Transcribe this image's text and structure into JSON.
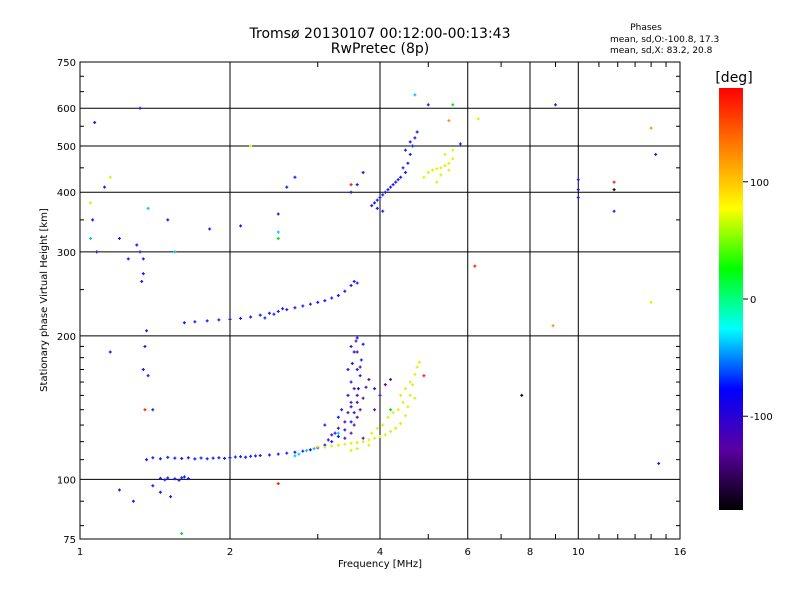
{
  "chart_data": {
    "type": "scatter",
    "title": "Tromsø 20130107 00:12:00-00:13:43",
    "subtitle": "RwPretec (8p)",
    "xlabel": "Frequency [MHz]",
    "ylabel": "Stationary phase Virtual Height [km]",
    "x_scale": "log",
    "y_scale": "log",
    "xlim": [
      1,
      16
    ],
    "ylim": [
      75,
      750
    ],
    "x_ticks": [
      1,
      2,
      4,
      6,
      8,
      10,
      16
    ],
    "y_ticks": [
      75,
      100,
      200,
      300,
      400,
      500,
      600,
      750
    ],
    "grid": true,
    "phases_box": {
      "title": "Phases",
      "line_o": "mean, sd,O:-100.8, 17.3",
      "line_x": "mean, sd,X:  83.2, 20.8"
    },
    "colorbar": {
      "label": "[deg]",
      "range": [
        -180,
        180
      ],
      "ticks": [
        100,
        0,
        -100
      ],
      "colors": [
        "#000000",
        "#5a00a0",
        "#0000ff",
        "#00ffff",
        "#00ff00",
        "#ffff00",
        "#ff8000",
        "#ff0000"
      ]
    },
    "series": [
      {
        "color": "#1a1aff",
        "points": [
          [
            1.45,
            100.5
          ],
          [
            1.5,
            100.7
          ],
          [
            1.55,
            100.3
          ],
          [
            1.6,
            100.8
          ],
          [
            1.65,
            100.4
          ],
          [
            1.48,
            99.8
          ],
          [
            1.58,
            99.6
          ],
          [
            1.62,
            101.2
          ],
          [
            1.36,
            110
          ],
          [
            1.4,
            111
          ],
          [
            1.45,
            110.5
          ],
          [
            1.5,
            111.2
          ],
          [
            1.55,
            110.8
          ],
          [
            1.6,
            110.6
          ],
          [
            1.65,
            111
          ],
          [
            1.7,
            110.4
          ],
          [
            1.75,
            110.9
          ],
          [
            1.8,
            110.5
          ],
          [
            1.85,
            110.8
          ],
          [
            1.9,
            111
          ],
          [
            1.95,
            110.7
          ],
          [
            2.0,
            111.1
          ],
          [
            2.05,
            111.4
          ],
          [
            2.1,
            111.6
          ],
          [
            2.15,
            111.3
          ],
          [
            2.2,
            111.8
          ],
          [
            2.25,
            112
          ],
          [
            2.3,
            112.2
          ],
          [
            2.4,
            112.5
          ],
          [
            2.5,
            113
          ],
          [
            2.6,
            113.5
          ],
          [
            2.7,
            114
          ],
          [
            2.8,
            114.6
          ],
          [
            2.9,
            115.4
          ],
          [
            3.0,
            116.5
          ],
          [
            3.1,
            118
          ],
          [
            3.2,
            120
          ],
          [
            3.3,
            123
          ],
          [
            3.4,
            127
          ],
          [
            3.5,
            132
          ],
          [
            3.55,
            138
          ],
          [
            3.6,
            145
          ],
          [
            3.62,
            155
          ],
          [
            3.65,
            165
          ],
          [
            3.67,
            178
          ],
          [
            3.7,
            192
          ],
          [
            3.3,
            135
          ],
          [
            3.45,
            150
          ],
          [
            3.5,
            160
          ],
          [
            3.35,
            140
          ],
          [
            3.6,
            170
          ],
          [
            3.55,
            185
          ],
          [
            3.4,
            122
          ],
          [
            3.25,
            125
          ],
          [
            3.15,
            121
          ],
          [
            3.1,
            130
          ],
          [
            3.5,
            142
          ],
          [
            3.6,
            198
          ],
          [
            1.62,
            213
          ],
          [
            1.7,
            214
          ],
          [
            1.8,
            215
          ],
          [
            1.9,
            216
          ],
          [
            2.0,
            216.5
          ],
          [
            2.1,
            217.5
          ],
          [
            2.2,
            219
          ],
          [
            2.3,
            221
          ],
          [
            2.4,
            223
          ],
          [
            2.5,
            225
          ],
          [
            2.6,
            227
          ],
          [
            2.7,
            229
          ],
          [
            2.8,
            231
          ],
          [
            2.9,
            233
          ],
          [
            3.0,
            235
          ],
          [
            3.1,
            237
          ],
          [
            3.2,
            240
          ],
          [
            3.3,
            243
          ],
          [
            3.4,
            248
          ],
          [
            3.5,
            255
          ],
          [
            3.55,
            260
          ],
          [
            3.6,
            258
          ],
          [
            2.35,
            218
          ],
          [
            2.45,
            222
          ],
          [
            2.55,
            228
          ],
          [
            3.85,
            375
          ],
          [
            3.9,
            380
          ],
          [
            3.95,
            385
          ],
          [
            4.0,
            390
          ],
          [
            4.05,
            395
          ],
          [
            4.1,
            400
          ],
          [
            4.15,
            405
          ],
          [
            4.2,
            410
          ],
          [
            4.3,
            420
          ],
          [
            4.4,
            430
          ],
          [
            4.5,
            440
          ],
          [
            4.55,
            460
          ],
          [
            4.6,
            480
          ],
          [
            4.65,
            500
          ],
          [
            4.7,
            520
          ],
          [
            4.75,
            535
          ],
          [
            4.45,
            450
          ],
          [
            4.35,
            425
          ],
          [
            4.25,
            415
          ],
          [
            4.5,
            490
          ],
          [
            4.6,
            510
          ],
          [
            3.95,
            370
          ],
          [
            4.05,
            365
          ],
          [
            1.12,
            410
          ],
          [
            1.2,
            320
          ],
          [
            1.3,
            310
          ],
          [
            1.32,
            300
          ],
          [
            1.34,
            290
          ],
          [
            1.34,
            270
          ],
          [
            1.25,
            290
          ],
          [
            1.08,
            300
          ],
          [
            1.06,
            350
          ],
          [
            1.07,
            560
          ],
          [
            1.36,
            205
          ],
          [
            1.35,
            190
          ],
          [
            1.34,
            170
          ],
          [
            1.37,
            165
          ],
          [
            1.33,
            260
          ],
          [
            1.5,
            350
          ],
          [
            1.82,
            335
          ],
          [
            2.1,
            340
          ],
          [
            2.5,
            360
          ],
          [
            2.6,
            410
          ],
          [
            2.7,
            430
          ],
          [
            3.5,
            400
          ],
          [
            3.6,
            415
          ],
          [
            3.7,
            440
          ],
          [
            10.0,
            425
          ],
          [
            10.0,
            405
          ],
          [
            10.0,
            390
          ],
          [
            11.8,
            365
          ],
          [
            14.3,
            480
          ],
          [
            14.5,
            108
          ],
          [
            1.2,
            95
          ],
          [
            1.28,
            90
          ],
          [
            1.4,
            97
          ],
          [
            1.52,
            92
          ],
          [
            1.4,
            140
          ],
          [
            1.32,
            600
          ],
          [
            1.15,
            185
          ],
          [
            1.45,
            94
          ],
          [
            9.0,
            610
          ],
          [
            5.8,
            505
          ],
          [
            5.0,
            610
          ],
          [
            3.9,
            155
          ],
          [
            3.5,
            190
          ],
          [
            3.45,
            170
          ],
          [
            3.52,
            175
          ]
        ]
      },
      {
        "color": "#e0f000",
        "points": [
          [
            3.0,
            117
          ],
          [
            3.1,
            116.8
          ],
          [
            3.2,
            117.5
          ],
          [
            3.3,
            118
          ],
          [
            3.4,
            118.5
          ],
          [
            3.5,
            119
          ],
          [
            3.6,
            119.5
          ],
          [
            3.7,
            120
          ],
          [
            3.8,
            121
          ],
          [
            3.9,
            122
          ],
          [
            4.0,
            123
          ],
          [
            4.1,
            124
          ],
          [
            4.2,
            126
          ],
          [
            4.3,
            128
          ],
          [
            4.4,
            131
          ],
          [
            4.5,
            136
          ],
          [
            4.55,
            142
          ],
          [
            4.6,
            150
          ],
          [
            4.65,
            158
          ],
          [
            4.7,
            166
          ],
          [
            4.75,
            172
          ],
          [
            4.8,
            176
          ],
          [
            4.45,
            145
          ],
          [
            4.35,
            140
          ],
          [
            4.25,
            138
          ],
          [
            4.15,
            135
          ],
          [
            4.05,
            130
          ],
          [
            3.95,
            128
          ],
          [
            3.85,
            125
          ],
          [
            4.6,
            160
          ],
          [
            4.5,
            155
          ],
          [
            4.4,
            150
          ],
          [
            4.7,
            148
          ],
          [
            4.9,
            430
          ],
          [
            5.0,
            440
          ],
          [
            5.1,
            445
          ],
          [
            5.2,
            448
          ],
          [
            5.3,
            450
          ],
          [
            5.4,
            455
          ],
          [
            5.5,
            460
          ],
          [
            5.6,
            470
          ],
          [
            5.5,
            445
          ],
          [
            5.3,
            435
          ],
          [
            5.4,
            480
          ],
          [
            5.6,
            490
          ],
          [
            5.2,
            420
          ],
          [
            3.5,
            115
          ],
          [
            3.6,
            116
          ],
          [
            3.8,
            118
          ],
          [
            1.15,
            430
          ],
          [
            1.05,
            380
          ],
          [
            14.0,
            235
          ],
          [
            6.3,
            570
          ],
          [
            2.2,
            500
          ]
        ]
      },
      {
        "color": "#5a10a0",
        "points": [
          [
            3.5,
            125
          ],
          [
            3.55,
            130
          ],
          [
            3.6,
            135
          ],
          [
            3.65,
            140
          ],
          [
            3.7,
            148
          ],
          [
            3.75,
            156
          ],
          [
            3.8,
            162
          ],
          [
            3.6,
            150
          ],
          [
            3.5,
            145
          ],
          [
            3.45,
            138
          ],
          [
            3.4,
            132
          ],
          [
            3.3,
            128
          ],
          [
            3.2,
            124
          ],
          [
            3.55,
            155
          ],
          [
            3.65,
            172
          ],
          [
            3.6,
            185
          ],
          [
            3.58,
            195
          ],
          [
            4.0,
            150
          ],
          [
            4.1,
            158
          ],
          [
            4.2,
            162
          ],
          [
            3.9,
            140
          ],
          [
            3.7,
            122
          ]
        ]
      },
      {
        "color": "#00c8ff",
        "points": [
          [
            2.7,
            112
          ],
          [
            2.75,
            113
          ],
          [
            2.85,
            115
          ],
          [
            2.95,
            116
          ],
          [
            4.7,
            640
          ],
          [
            3.3,
            125
          ],
          [
            1.55,
            300
          ],
          [
            1.05,
            320
          ],
          [
            1.37,
            370
          ],
          [
            2.5,
            330
          ]
        ]
      },
      {
        "color": "#ff2000",
        "points": [
          [
            11.8,
            420
          ],
          [
            3.5,
            415
          ],
          [
            2.5,
            98
          ],
          [
            1.35,
            140
          ],
          [
            6.2,
            280
          ],
          [
            4.9,
            165
          ]
        ]
      },
      {
        "color": "#ff9000",
        "points": [
          [
            8.9,
            210
          ],
          [
            14.0,
            545
          ],
          [
            5.5,
            565
          ]
        ]
      },
      {
        "color": "#00e000",
        "points": [
          [
            1.6,
            77
          ],
          [
            2.5,
            320
          ],
          [
            5.6,
            610
          ],
          [
            4.2,
            140
          ]
        ]
      },
      {
        "color": "#101010",
        "points": [
          [
            7.7,
            150
          ],
          [
            11.8,
            405
          ]
        ]
      }
    ]
  }
}
